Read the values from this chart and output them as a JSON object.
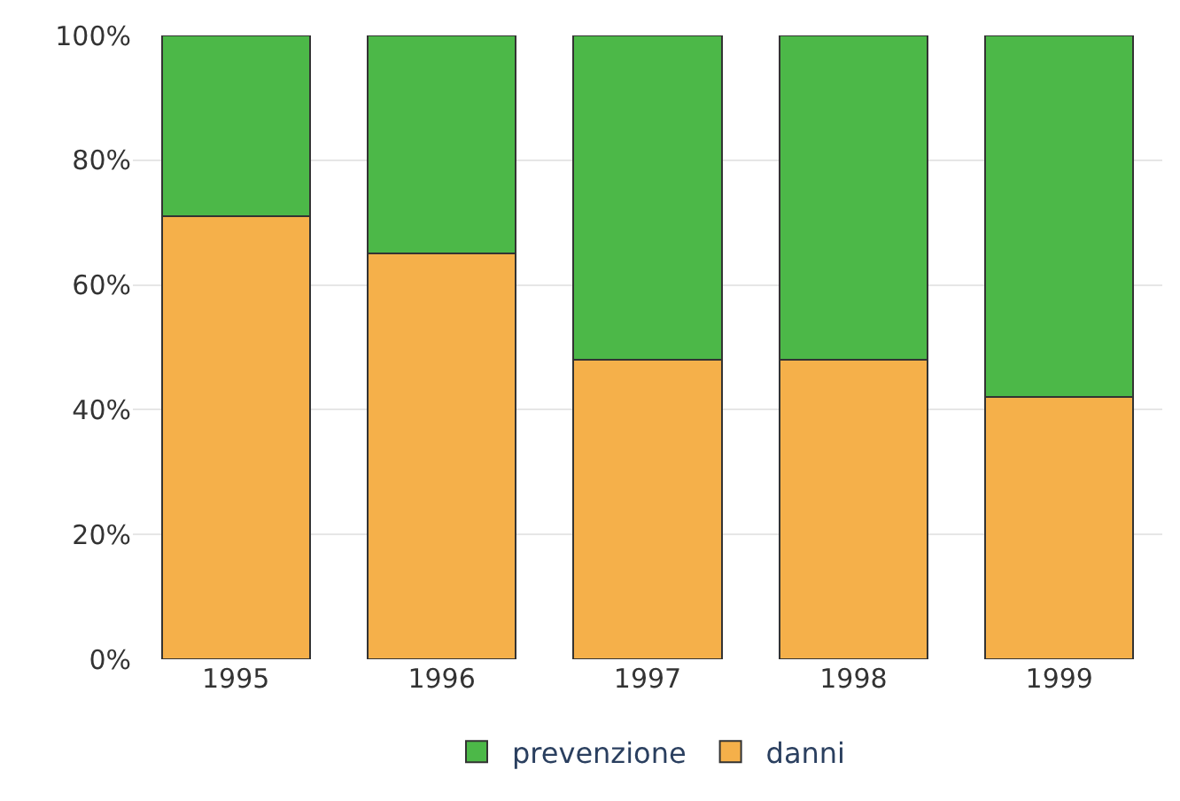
{
  "chart_data": {
    "type": "bar",
    "stacked": true,
    "categories": [
      "1995",
      "1996",
      "1997",
      "1998",
      "1999"
    ],
    "series": [
      {
        "name": "danni",
        "color": "#f5b04a",
        "values": [
          71,
          65,
          48,
          48,
          42
        ]
      },
      {
        "name": "prevenzione",
        "color": "#4cb848",
        "values": [
          29,
          35,
          52,
          52,
          58
        ]
      }
    ],
    "ylim": [
      0,
      100
    ],
    "yticks": [
      {
        "value": 0,
        "label": "0%"
      },
      {
        "value": 20,
        "label": "20%"
      },
      {
        "value": 40,
        "label": "40%"
      },
      {
        "value": 60,
        "label": "60%"
      },
      {
        "value": 80,
        "label": "80%"
      },
      {
        "value": 100,
        "label": "100%"
      }
    ],
    "grid": "y",
    "legend": "bottom"
  }
}
